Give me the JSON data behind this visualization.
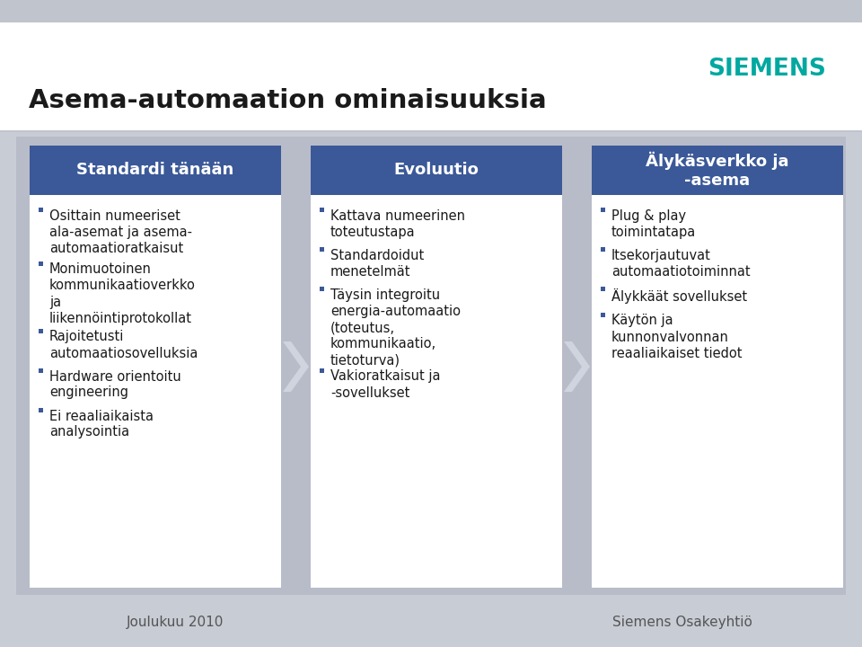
{
  "title": "Asema-automaation ominaisuuksia",
  "page_bg": "#c8ccd4",
  "header_bg": "#ffffff",
  "content_bg": "#b8bcc8",
  "col_bg": "#ffffff",
  "col_header_color": "#3b5998",
  "col_header_text": "#ffffff",
  "bullet_square_color": "#3b5998",
  "body_text_color": "#1a1a1a",
  "siemens_color": "#00a8a0",
  "footer_text_color": "#555555",
  "footer_bg": "#c8ccd4",
  "arrow_color": "#d0d4de",
  "columns": [
    {
      "title": "Standardi tänään",
      "bullets": [
        "Osittain numeeriset\nala-asemat ja asema-\nautomaatioratkaisut",
        "Monimuotoinen\nkommunikaatioverkko\nja\nliikennöintiprotokollat",
        "Rajoitetusti\nautomaatiosovelluksia",
        "Hardware orientoitu\nengineering",
        "Ei reaaliaikaista\nanalysointia"
      ]
    },
    {
      "title": "Evoluutio",
      "bullets": [
        "Kattava numeerinen\ntoteutustapa",
        "Standardoidut\nmenetelmät",
        "Täysin integroitu\nenergia-automaatio\n(toteutus,\nkommunikaatio,\ntietoturva)",
        "Vakioratkaisut ja\n-sovellukset"
      ]
    },
    {
      "title": "Älykäsverkko ja\n-asema",
      "bullets": [
        "Plug & play\ntoimintatapa",
        "Itsekorjautuvat\nautomaatiotoiminnat",
        "Älykkäät sovellukset",
        "Käytön ja\nkunnonvalvonnan\nreaaliaikaiset tiedot"
      ]
    }
  ],
  "footer_left": "Joulukuu 2010",
  "footer_right": "Siemens Osakeyhtiö"
}
